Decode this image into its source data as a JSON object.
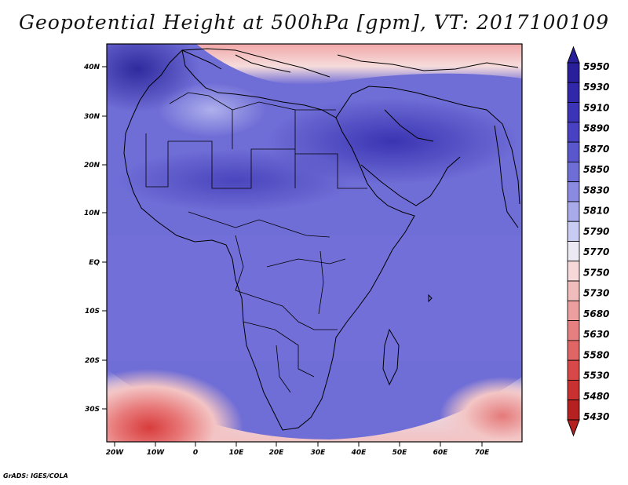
{
  "title": "Geopotential Height at 500hPa [gpm], VT: 2017100109",
  "credit": "GrADS: IGES/COLA",
  "map": {
    "lat_labels": [
      "40N",
      "30N",
      "20N",
      "10N",
      "EQ",
      "10S",
      "20S",
      "30S"
    ],
    "lon_labels": [
      "20W",
      "10W",
      "0",
      "10E",
      "20E",
      "30E",
      "40E",
      "50E",
      "60E",
      "70E"
    ]
  },
  "colorbar": {
    "levels": [
      "5950",
      "5930",
      "5910",
      "5890",
      "5870",
      "5850",
      "5830",
      "5810",
      "5790",
      "5770",
      "5750",
      "5730",
      "5680",
      "5630",
      "5580",
      "5530",
      "5480",
      "5430"
    ],
    "colors": [
      "#2a1f9a",
      "#3028a8",
      "#3b34b6",
      "#4842c2",
      "#5a56cc",
      "#6f6dd6",
      "#8a8ae0",
      "#a8aaea",
      "#c8cbf2",
      "#ece9f4",
      "#f6d8d8",
      "#f1bcbc",
      "#ec9f9f",
      "#e68080",
      "#e06565",
      "#d84848",
      "#c93030",
      "#b52020"
    ]
  }
}
